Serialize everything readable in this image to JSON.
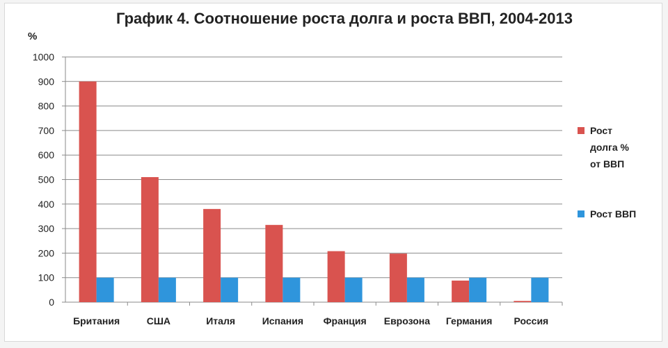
{
  "chart_data": {
    "type": "bar",
    "title": "График 4. Соотношение роста долга и роста ВВП, 2004-2013",
    "ylabel": "%",
    "xlabel": "",
    "ylim": [
      0,
      1000
    ],
    "yticks": [
      0,
      100,
      200,
      300,
      400,
      500,
      600,
      700,
      800,
      900,
      1000
    ],
    "grid": true,
    "legend_position": "right",
    "categories": [
      "Британия",
      "США",
      "Италя",
      "Испания",
      "Франция",
      "Еврозона",
      "Германия",
      "Россия"
    ],
    "series": [
      {
        "name": "Рост\nдолга %\nот ВВП",
        "color": "#d9534f",
        "values": [
          900,
          510,
          380,
          315,
          208,
          198,
          88,
          5
        ]
      },
      {
        "name": "Рост ВВП",
        "color": "#2f95dc",
        "values": [
          100,
          100,
          100,
          100,
          100,
          100,
          100,
          100
        ]
      }
    ]
  }
}
